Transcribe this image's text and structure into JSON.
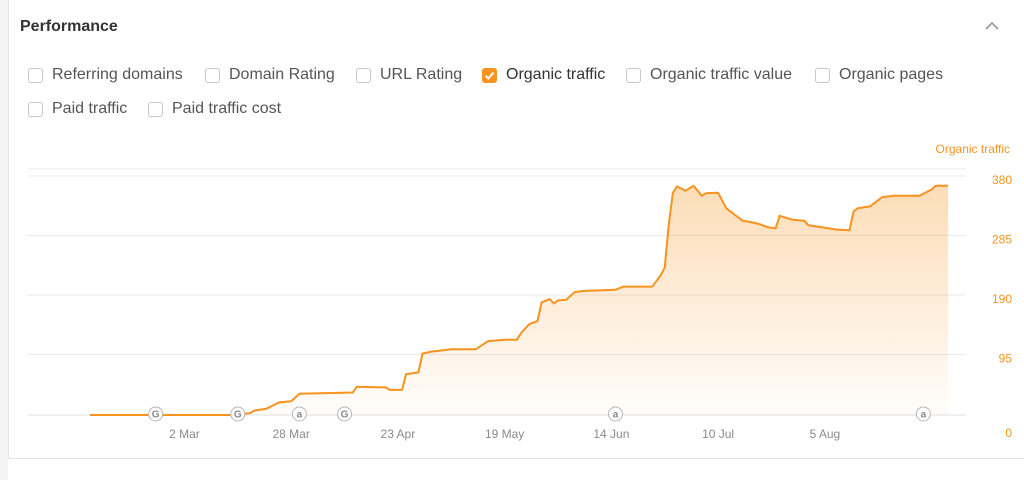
{
  "section": {
    "title": "Performance"
  },
  "metrics": [
    {
      "label": "Referring domains",
      "checked": false
    },
    {
      "label": "Domain Rating",
      "checked": false
    },
    {
      "label": "URL Rating",
      "checked": false
    },
    {
      "label": "Organic traffic",
      "checked": true
    },
    {
      "label": "Organic traffic value",
      "checked": false
    },
    {
      "label": "Organic pages",
      "checked": false
    },
    {
      "label": "Paid traffic",
      "checked": false
    },
    {
      "label": "Paid traffic cost",
      "checked": false
    }
  ],
  "colors": {
    "accent": "#f7931e",
    "grid": "#e8e8e8",
    "text_muted": "#8a8a8a"
  },
  "icons": {
    "collapse": "chevron-up-icon"
  },
  "chart_data": {
    "type": "area",
    "series": [
      {
        "name": "Organic traffic",
        "color": "#f7931e",
        "points": [
          [
            "2023-02-07",
            0
          ],
          [
            "2023-03-14",
            0
          ],
          [
            "2023-03-15",
            1
          ],
          [
            "2023-03-18",
            3
          ],
          [
            "2023-03-19",
            7
          ],
          [
            "2023-03-22",
            10
          ],
          [
            "2023-03-25",
            20
          ],
          [
            "2023-03-28",
            22
          ],
          [
            "2023-03-30",
            34
          ],
          [
            "2023-04-12",
            36
          ],
          [
            "2023-04-13",
            45
          ],
          [
            "2023-04-20",
            44
          ],
          [
            "2023-04-21",
            40
          ],
          [
            "2023-04-24",
            40
          ],
          [
            "2023-04-25",
            65
          ],
          [
            "2023-04-28",
            68
          ],
          [
            "2023-04-29",
            98
          ],
          [
            "2023-05-01",
            101
          ],
          [
            "2023-05-06",
            105
          ],
          [
            "2023-05-12",
            105
          ],
          [
            "2023-05-15",
            118
          ],
          [
            "2023-05-19",
            120
          ],
          [
            "2023-05-22",
            120
          ],
          [
            "2023-05-23",
            131
          ],
          [
            "2023-05-25",
            145
          ],
          [
            "2023-05-27",
            150
          ],
          [
            "2023-05-28",
            180
          ],
          [
            "2023-05-30",
            185
          ],
          [
            "2023-05-31",
            178
          ],
          [
            "2023-06-01",
            183
          ],
          [
            "2023-06-03",
            184
          ],
          [
            "2023-06-05",
            196
          ],
          [
            "2023-06-07",
            198
          ],
          [
            "2023-06-15",
            200
          ],
          [
            "2023-06-17",
            205
          ],
          [
            "2023-06-24",
            205
          ],
          [
            "2023-06-26",
            223
          ],
          [
            "2023-06-27",
            235
          ],
          [
            "2023-06-28",
            305
          ],
          [
            "2023-06-29",
            355
          ],
          [
            "2023-06-30",
            365
          ],
          [
            "2023-07-02",
            358
          ],
          [
            "2023-07-04",
            366
          ],
          [
            "2023-07-06",
            350
          ],
          [
            "2023-07-07",
            354
          ],
          [
            "2023-07-10",
            355
          ],
          [
            "2023-07-12",
            330
          ],
          [
            "2023-07-14",
            320
          ],
          [
            "2023-07-16",
            310
          ],
          [
            "2023-07-18",
            308
          ],
          [
            "2023-07-20",
            305
          ],
          [
            "2023-07-22",
            300
          ],
          [
            "2023-07-24",
            298
          ],
          [
            "2023-07-25",
            318
          ],
          [
            "2023-07-28",
            312
          ],
          [
            "2023-07-31",
            310
          ],
          [
            "2023-08-01",
            303
          ],
          [
            "2023-08-04",
            300
          ],
          [
            "2023-08-08",
            296
          ],
          [
            "2023-08-11",
            295
          ],
          [
            "2023-08-12",
            325
          ],
          [
            "2023-08-13",
            330
          ],
          [
            "2023-08-16",
            333
          ],
          [
            "2023-08-19",
            348
          ],
          [
            "2023-08-22",
            350
          ],
          [
            "2023-08-28",
            350
          ],
          [
            "2023-08-31",
            360
          ],
          [
            "2023-09-01",
            366
          ],
          [
            "2023-09-04",
            366
          ]
        ]
      }
    ],
    "x_ticks": [
      {
        "label": "2 Mar",
        "date": "2023-03-02"
      },
      {
        "label": "28 Mar",
        "date": "2023-03-28"
      },
      {
        "label": "23 Apr",
        "date": "2023-04-23"
      },
      {
        "label": "19 May",
        "date": "2023-05-19"
      },
      {
        "label": "14 Jun",
        "date": "2023-06-14"
      },
      {
        "label": "10 Jul",
        "date": "2023-07-10"
      },
      {
        "label": "5 Aug",
        "date": "2023-08-05"
      }
    ],
    "xlim": [
      "2023-02-07",
      "2023-09-04"
    ],
    "y_ticks": [
      0,
      95,
      190,
      285,
      380
    ],
    "ylim": [
      0,
      380
    ],
    "y_axis_title": "Organic traffic",
    "y_axis_side": "right",
    "grid": true,
    "markers": [
      {
        "symbol": "G",
        "date": "2023-02-23"
      },
      {
        "symbol": "G",
        "date": "2023-03-15"
      },
      {
        "symbol": "a",
        "date": "2023-03-30"
      },
      {
        "symbol": "G",
        "date": "2023-04-10"
      },
      {
        "symbol": "a",
        "date": "2023-06-15"
      },
      {
        "symbol": "a",
        "date": "2023-08-29"
      }
    ]
  }
}
